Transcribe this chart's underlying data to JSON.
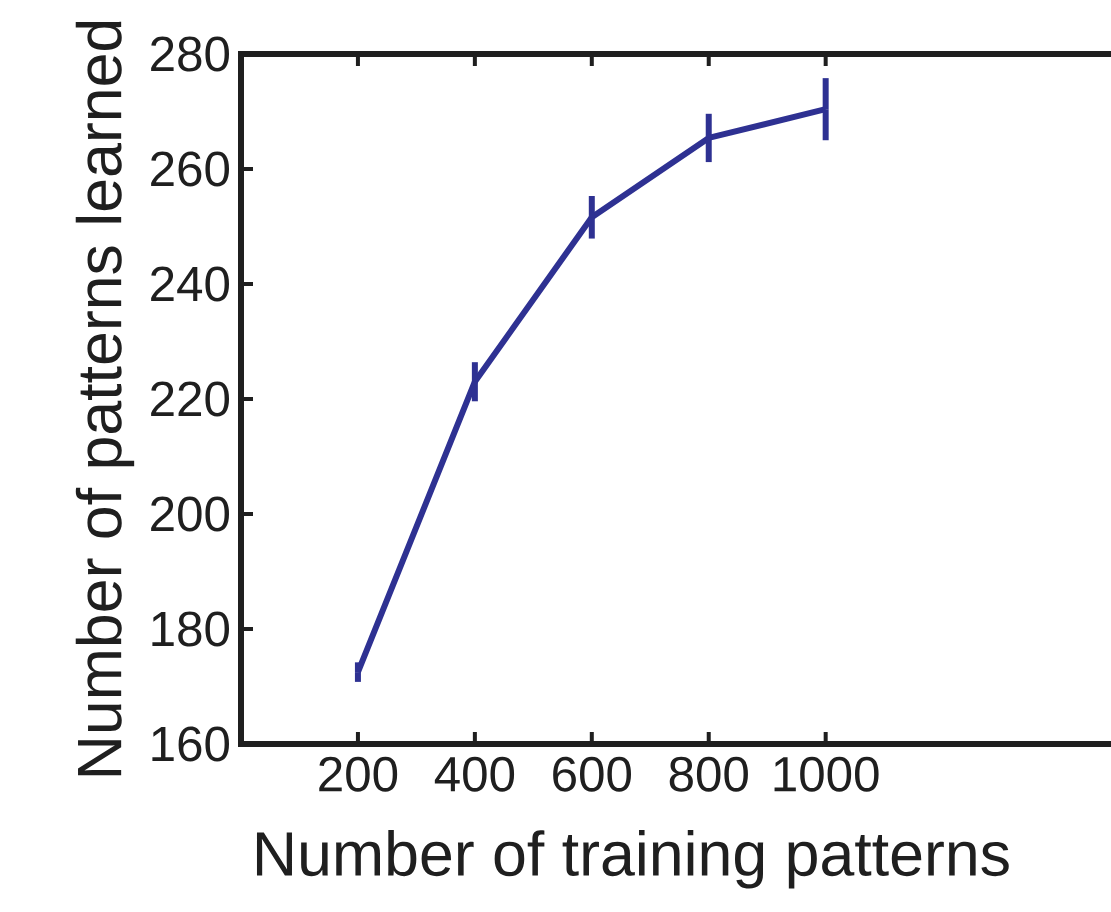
{
  "chart_data": {
    "type": "line",
    "xlabel": "Number of training patterns",
    "ylabel": "Number of patterns learned",
    "x": [
      200,
      400,
      600,
      800,
      1000
    ],
    "series": [
      {
        "color": "#2e3192",
        "values": [
          172.5,
          223.0,
          251.6,
          265.4,
          270.4
        ],
        "errors": [
          1.7,
          3.4,
          3.7,
          4.2,
          5.4
        ]
      }
    ],
    "xlim": [
      0,
      1500
    ],
    "ylim": [
      160,
      280
    ],
    "xticks": [
      200,
      400,
      600,
      800,
      1000
    ],
    "yticks": [
      160,
      180,
      200,
      220,
      240,
      260,
      280
    ],
    "marker": "none",
    "line_style": "solid"
  }
}
